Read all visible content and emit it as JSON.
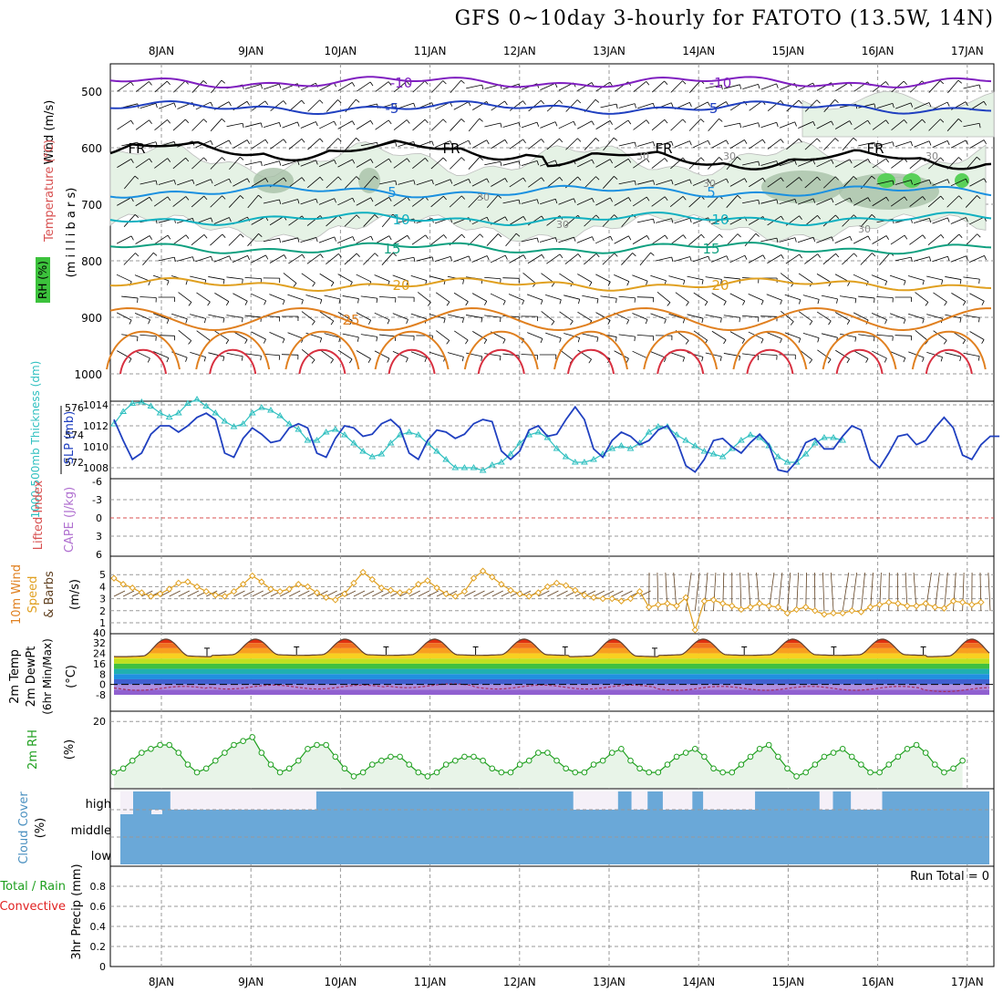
{
  "title": "GFS 0~10day 3-hourly for FATOTO (13.5W, 14N)",
  "colors": {
    "grid": "#999999",
    "rh_fill": "#e5f2e5",
    "wind_barb": "#000000",
    "cloud": "#6aa8d8",
    "cloud_gap": "#f5f0f8"
  },
  "chart_data": {
    "type": "meteogram",
    "days": [
      "8JAN",
      "9JAN",
      "10JAN",
      "11JAN",
      "12JAN",
      "13JAN",
      "14JAN",
      "15JAN",
      "16JAN",
      "17JAN"
    ],
    "panels": [
      {
        "name": "upper-air",
        "ylabels": [
          {
            "text": "Wind (m/s)",
            "color": "#000000"
          },
          {
            "text": "Temperature (°C)",
            "color": "#d85050"
          },
          {
            "text": "RH (%)",
            "color": "#000000"
          }
        ],
        "yunit": "(m i l l i b a r s)",
        "yticks": [
          500,
          600,
          700,
          800,
          900,
          1000
        ],
        "isotherms": [
          {
            "value": -10,
            "color": "#8020c0",
            "labels": [
              "-10",
              "-10"
            ]
          },
          {
            "value": -5,
            "color": "#2040c0",
            "labels": [
              "-5",
              "-5"
            ]
          },
          {
            "value": 0,
            "color": "#000000",
            "labels": [
              "FR",
              "FR",
              "FR",
              "FR"
            ]
          },
          {
            "value": 5,
            "color": "#1a90e0",
            "labels": [
              "5",
              "5"
            ]
          },
          {
            "value": 10,
            "color": "#10b0c0",
            "labels": [
              "10",
              "10"
            ]
          },
          {
            "value": 15,
            "color": "#10a080",
            "labels": [
              "15",
              "15"
            ]
          },
          {
            "value": 20,
            "color": "#e0a020",
            "labels": [
              "20",
              "20"
            ]
          },
          {
            "value": 25,
            "color": "#e08020",
            "labels": [
              "25"
            ]
          }
        ],
        "rh_labels": [
          "30",
          "30",
          "30",
          "30",
          "30",
          "30",
          "30"
        ]
      },
      {
        "name": "thickness-slp",
        "ylabels": [
          {
            "text": "1000-500mb Thickness (dm)",
            "color": "#30c0c0"
          },
          {
            "text": "SLP (mb)",
            "color": "#2040c0"
          }
        ],
        "yticks_left": [
          572,
          574,
          576
        ],
        "yticks_right": [
          1008,
          1010,
          1012,
          1014
        ],
        "thickness": [
          574.8,
          575.7,
          576.3,
          576.4,
          576.1,
          575.6,
          575.3,
          575.6,
          576.3,
          576.6,
          576.1,
          575.6,
          575.0,
          574.6,
          574.8,
          575.6,
          576.0,
          575.8,
          575.4,
          574.8,
          574.4,
          573.6,
          573.6,
          574.2,
          574.4,
          574.0,
          573.4,
          572.8,
          572.4,
          572.6,
          573.4,
          574.0,
          574.2,
          574.0,
          573.4,
          572.8,
          572.2,
          571.6,
          571.6,
          571.6,
          571.4,
          571.8,
          572.0,
          572.6,
          573.4,
          574.0,
          574.2,
          573.8,
          573.0,
          572.4,
          572.0,
          572.0,
          572.2,
          572.6,
          573.0,
          573.2,
          573.0,
          573.4,
          574.2,
          574.6,
          574.6,
          574.0,
          573.6,
          573.2,
          572.8,
          572.6,
          572.4,
          573.0,
          573.6,
          574.0,
          573.8,
          573.2,
          572.4,
          572.0,
          572.0,
          572.6,
          573.4,
          573.8,
          573.8,
          573.6
        ],
        "slp": [
          1012.6,
          1010.6,
          1008.8,
          1009.4,
          1011.2,
          1012.0,
          1012.0,
          1011.4,
          1012.0,
          1012.8,
          1013.2,
          1012.6,
          1009.4,
          1009.0,
          1010.8,
          1011.8,
          1011.2,
          1010.4,
          1010.6,
          1011.8,
          1012.2,
          1011.8,
          1009.4,
          1009.0,
          1010.8,
          1012.0,
          1011.8,
          1011.0,
          1011.2,
          1012.2,
          1012.6,
          1011.8,
          1009.4,
          1008.8,
          1010.6,
          1011.6,
          1011.4,
          1010.8,
          1011.2,
          1012.2,
          1012.6,
          1012.4,
          1009.6,
          1008.8,
          1009.6,
          1011.6,
          1012.0,
          1011.0,
          1011.2,
          1012.6,
          1013.8,
          1012.6,
          1009.8,
          1009.0,
          1010.6,
          1011.4,
          1011.0,
          1010.2,
          1010.6,
          1011.6,
          1012.0,
          1010.6,
          1008.2,
          1007.6,
          1008.8,
          1010.6,
          1010.8,
          1010.0,
          1009.4,
          1010.4,
          1011.2,
          1010.2,
          1007.8,
          1007.6,
          1008.6,
          1010.4,
          1010.8,
          1009.8,
          1009.8,
          1011.0,
          1012.0,
          1011.6,
          1008.8,
          1008.0,
          1009.4,
          1011.0,
          1011.2,
          1010.2,
          1010.6,
          1011.8,
          1012.8,
          1011.8,
          1009.2,
          1008.8,
          1010.2,
          1011.0,
          1011.0
        ]
      },
      {
        "name": "stability",
        "ylabels": [
          {
            "text": "Lifted Index",
            "color": "#d85050"
          },
          {
            "text": "CAPE (J/kg)",
            "color": "#b070d0"
          }
        ],
        "yticks": [
          "-6",
          "-3",
          "0",
          "3",
          "6"
        ],
        "li_zero_color": "#d85050"
      },
      {
        "name": "wind10m",
        "ylabels": [
          {
            "text": "10m Wind",
            "color": "#e08020"
          },
          {
            "text": "Speed",
            "color": "#e0a020"
          },
          {
            "text": "& Barbs",
            "color": "#604020"
          },
          {
            "text": "(m/s)",
            "color": "#000000"
          }
        ],
        "yticks": [
          1,
          2,
          3,
          4,
          5
        ],
        "speed": [
          4.7,
          4.2,
          3.9,
          3.5,
          3.2,
          3.4,
          3.8,
          4.3,
          4.4,
          4.0,
          3.6,
          3.3,
          3.2,
          3.6,
          4.2,
          4.9,
          4.4,
          3.8,
          3.6,
          3.8,
          4.2,
          4.0,
          3.5,
          3.1,
          2.9,
          3.4,
          4.3,
          5.2,
          4.6,
          3.9,
          3.7,
          3.5,
          3.6,
          4.2,
          4.5,
          3.9,
          3.4,
          3.2,
          3.6,
          4.7,
          5.3,
          4.8,
          4.2,
          3.7,
          3.4,
          3.2,
          3.5,
          4.0,
          4.3,
          4.1,
          3.7,
          3.3,
          3.1,
          3.0,
          3.0,
          2.8,
          3.0,
          3.6,
          2.3,
          2.5,
          2.6,
          2.4,
          3.1,
          0.4,
          2.8,
          2.9,
          2.6,
          2.4,
          2.1,
          2.3,
          2.6,
          2.4,
          2.3,
          1.8,
          2.1,
          2.3,
          2.0,
          1.7,
          1.8,
          1.8,
          2.0,
          1.9,
          2.3,
          2.5,
          2.7,
          2.6,
          2.4,
          2.4,
          2.6,
          2.3,
          2.2,
          2.8,
          2.7,
          2.5,
          2.7
        ]
      },
      {
        "name": "temperature2m",
        "ylabels": [
          {
            "text": "2m Temp",
            "color": "#000000"
          },
          {
            "text": "2m DewPt",
            "color": "#000000"
          },
          {
            "text": "(6hr Min/Max)",
            "color": "#000000"
          },
          {
            "text": "(°C)",
            "color": "#000000"
          }
        ],
        "yticks": [
          -8,
          0,
          8,
          16,
          24,
          32,
          40
        ],
        "temp_day": [
          35,
          35,
          35,
          35,
          35,
          35,
          35,
          35,
          35,
          35
        ],
        "temp_night": [
          22,
          23,
          23,
          23,
          23,
          22,
          23,
          23,
          23,
          22
        ],
        "dewpt": [
          -3,
          -2,
          -2,
          -1,
          -2,
          -2,
          -3,
          -3,
          -3,
          -4
        ]
      },
      {
        "name": "rh2m",
        "ylabels": [
          {
            "text": "2m RH",
            "color": "#20a020"
          },
          {
            "text": "(%)",
            "color": "#000000"
          }
        ],
        "yticks": [
          20
        ],
        "rh": [
          7,
          8,
          10,
          12,
          13,
          14,
          14,
          12,
          9,
          7,
          8,
          10,
          12,
          14,
          15,
          16,
          12,
          9,
          7,
          8,
          10,
          13,
          14,
          14,
          11,
          8,
          6,
          7,
          9,
          10,
          11,
          11,
          9,
          7,
          6,
          7,
          9,
          10,
          11,
          11,
          10,
          8,
          7,
          7,
          9,
          10,
          12,
          12,
          10,
          8,
          7,
          7,
          9,
          10,
          12,
          13,
          10,
          8,
          7,
          7,
          9,
          11,
          12,
          13,
          11,
          8,
          7,
          7,
          9,
          11,
          13,
          14,
          11,
          8,
          6,
          7,
          9,
          11,
          12,
          13,
          11,
          9,
          7,
          7,
          9,
          11,
          13,
          14,
          12,
          9,
          7,
          8,
          10
        ]
      },
      {
        "name": "cloud",
        "ylabels": [
          {
            "text": "Cloud Cover",
            "color": "#4a90c0"
          },
          {
            "text": "(%)",
            "color": "#000000"
          }
        ],
        "levels": [
          "high",
          "middle",
          "low"
        ],
        "high_gaps_days": [
          [
            0.55,
            2.18
          ],
          [
            5.05,
            5.55
          ],
          [
            5.7,
            5.88
          ],
          [
            6.05,
            6.38
          ],
          [
            6.5,
            7.08
          ],
          [
            7.8,
            7.95
          ],
          [
            8.15,
            8.5
          ]
        ]
      },
      {
        "name": "precip",
        "ylabels": [
          {
            "text": "Total / Rain",
            "color": "#20a020"
          },
          {
            "text": "Convective",
            "color": "#e02020"
          },
          {
            "text": "3hr Precip (mm)",
            "color": "#000000"
          }
        ],
        "yticks": [
          "0",
          "0.2",
          "0.4",
          "0.6",
          "0.8"
        ],
        "run_total": "Run Total = 0"
      }
    ]
  }
}
